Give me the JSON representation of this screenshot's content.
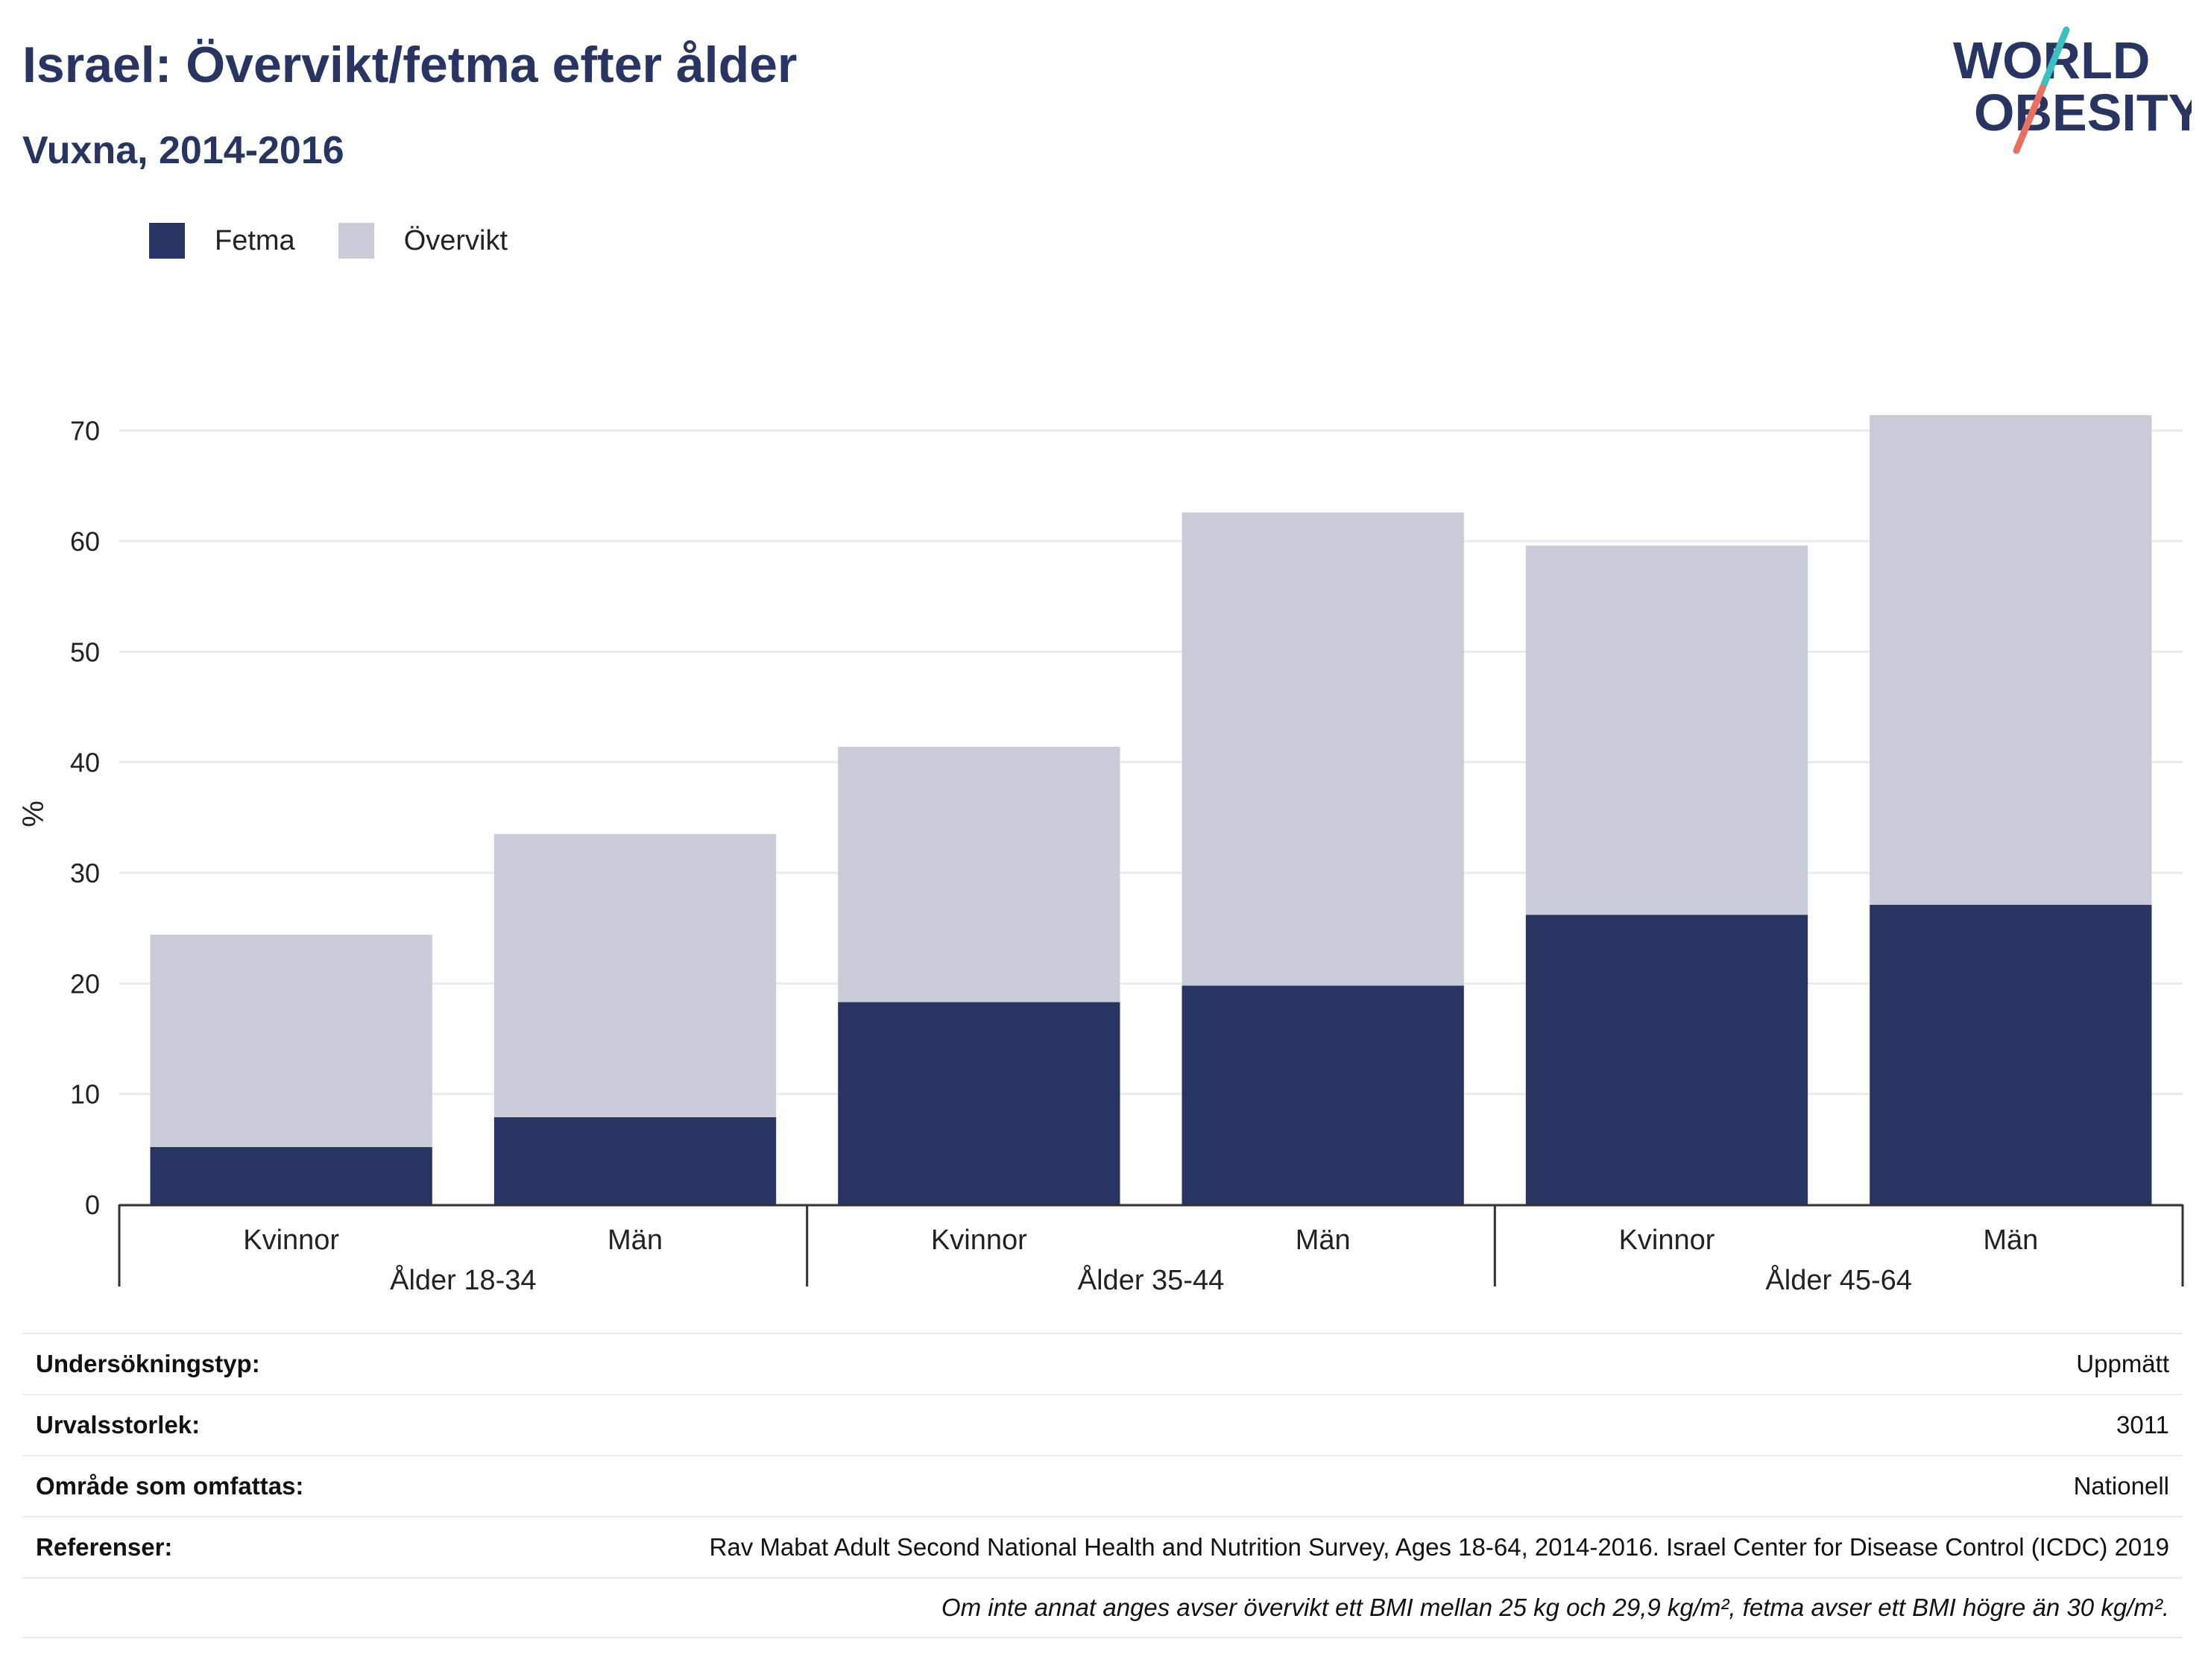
{
  "header": {
    "title": "Israel: Övervikt/fetma efter ålder",
    "subtitle": "Vuxna, 2014-2016"
  },
  "logo": {
    "line1": "WORLD",
    "line2": "OBESITY"
  },
  "colors": {
    "obesity": "#283462",
    "overweight": "#c9ccd8",
    "grid": "#e8eaee",
    "axis": "#333333",
    "logo_teal": "#3bbfbf",
    "logo_coral": "#e8705f"
  },
  "legend": [
    {
      "label": "Fetma",
      "color": "#283462"
    },
    {
      "label": "Övervikt",
      "color": "#c9ccd8"
    }
  ],
  "chart_data": {
    "type": "bar",
    "stacked": true,
    "ylabel": "%",
    "ylim": [
      0,
      72
    ],
    "yticks": [
      0,
      10,
      20,
      30,
      40,
      50,
      60,
      70
    ],
    "grid": true,
    "legend_position": "top-left",
    "categories": [
      "Kvinnor",
      "Män",
      "Kvinnor",
      "Män",
      "Kvinnor",
      "Män"
    ],
    "groups": [
      {
        "label": "Ålder 18-34",
        "members": [
          0,
          1
        ]
      },
      {
        "label": "Ålder 35-44",
        "members": [
          2,
          3
        ]
      },
      {
        "label": "Ålder 45-64",
        "members": [
          4,
          5
        ]
      }
    ],
    "series": [
      {
        "name": "Fetma",
        "values": [
          5.2,
          7.9,
          18.3,
          19.8,
          26.2,
          27.1
        ]
      },
      {
        "name": "Övervikt",
        "values": [
          19.2,
          25.6,
          23.1,
          42.8,
          33.4,
          44.3
        ]
      }
    ]
  },
  "info": {
    "rows": [
      {
        "label": "Undersökningstyp:",
        "value": "Uppmätt"
      },
      {
        "label": "Urvalsstorlek:",
        "value": "3011"
      },
      {
        "label": "Område som omfattas:",
        "value": "Nationell"
      },
      {
        "label": "Referenser:",
        "value": "Rav Mabat Adult Second National Health and Nutrition Survey, Ages 18-64, 2014-2016. Israel Center for Disease Control (ICDC) 2019"
      }
    ],
    "note": "Om inte annat anges avser övervikt ett BMI mellan 25 kg och 29,9 kg/m², fetma avser ett BMI högre än 30 kg/m²."
  }
}
